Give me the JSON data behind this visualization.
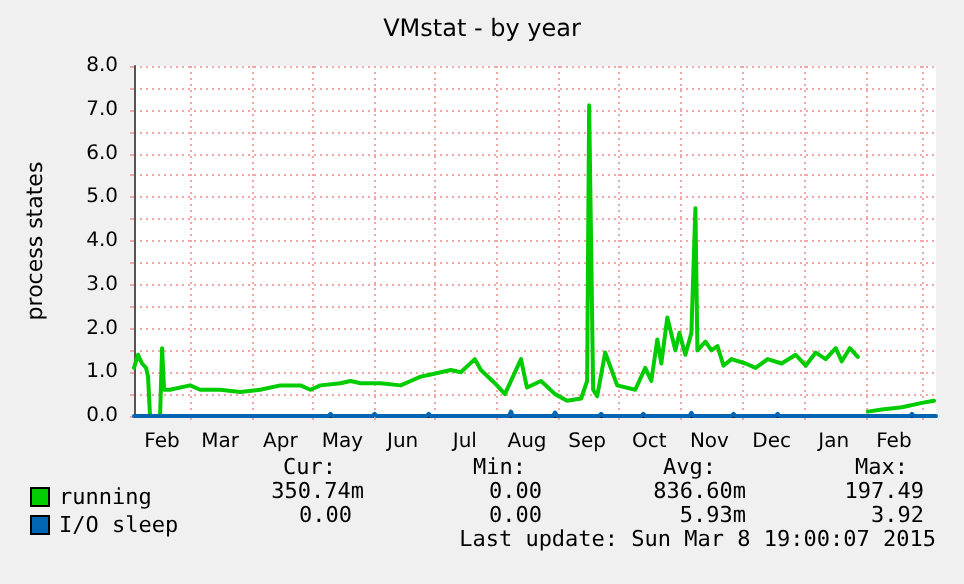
{
  "chart_data": {
    "type": "line",
    "title": "VMstat - by year",
    "ylabel": "process states",
    "xlim": [
      "2014-02-01",
      "2015-03-08"
    ],
    "xticks": [
      {
        "value": "2014-02-15",
        "label": "Feb"
      },
      {
        "value": "2014-03-16",
        "label": "Mar"
      },
      {
        "value": "2014-04-15",
        "label": "Apr"
      },
      {
        "value": "2014-05-16",
        "label": "May"
      },
      {
        "value": "2014-06-15",
        "label": "Jun"
      },
      {
        "value": "2014-07-16",
        "label": "Jul"
      },
      {
        "value": "2014-08-16",
        "label": "Aug"
      },
      {
        "value": "2014-09-15",
        "label": "Sep"
      },
      {
        "value": "2014-10-16",
        "label": "Oct"
      },
      {
        "value": "2014-11-15",
        "label": "Nov"
      },
      {
        "value": "2014-12-16",
        "label": "Dec"
      },
      {
        "value": "2015-01-16",
        "label": "Jan"
      },
      {
        "value": "2015-02-15",
        "label": "Feb"
      },
      {
        "value": "2014-03-01",
        "label": null
      },
      {
        "value": "2014-04-01",
        "label": null
      },
      {
        "value": "2014-05-01",
        "label": null
      },
      {
        "value": "2014-06-01",
        "label": null
      },
      {
        "value": "2014-07-01",
        "label": null
      },
      {
        "value": "2014-08-01",
        "label": null
      },
      {
        "value": "2014-09-01",
        "label": null
      },
      {
        "value": "2014-10-01",
        "label": null
      },
      {
        "value": "2014-11-01",
        "label": null
      },
      {
        "value": "2014-12-01",
        "label": null
      },
      {
        "value": "2015-01-01",
        "label": null
      },
      {
        "value": "2015-02-01",
        "label": null
      },
      {
        "value": "2015-03-01",
        "label": null
      }
    ],
    "ylim": [
      0,
      8
    ],
    "yticks": [
      {
        "value": 0,
        "label": "0.0"
      },
      {
        "value": 0.5,
        "label": null
      },
      {
        "value": 1,
        "label": "1.0"
      },
      {
        "value": 1.5,
        "label": null
      },
      {
        "value": 2,
        "label": "2.0"
      },
      {
        "value": 2.5,
        "label": null
      },
      {
        "value": 3,
        "label": "3.0"
      },
      {
        "value": 3.5,
        "label": null
      },
      {
        "value": 4,
        "label": "4.0"
      },
      {
        "value": 4.5,
        "label": null
      },
      {
        "value": 5,
        "label": "5.0"
      },
      {
        "value": 5.5,
        "label": null
      },
      {
        "value": 6,
        "label": "6.0"
      },
      {
        "value": 6.5,
        "label": null
      },
      {
        "value": 7,
        "label": "7.0"
      },
      {
        "value": 7.5,
        "label": null
      },
      {
        "value": 8,
        "label": "8.0"
      }
    ],
    "grid": true,
    "legend": "bottom left",
    "marker": "none",
    "line_style": "solid",
    "series": [
      {
        "name": "running",
        "color": "#00cc00",
        "x": [
          "2014-02-01",
          "2014-02-03",
          "2014-02-05",
          "2014-02-07",
          "2014-02-08",
          "2014-02-09",
          "2014-02-14",
          "2014-02-15",
          "2014-02-16",
          "2014-02-19",
          "2014-03-01",
          "2014-03-06",
          "2014-03-16",
          "2014-03-26",
          "2014-04-05",
          "2014-04-15",
          "2014-04-25",
          "2014-04-30",
          "2014-05-05",
          "2014-05-15",
          "2014-05-20",
          "2014-05-25",
          "2014-06-04",
          "2014-06-14",
          "2014-06-19",
          "2014-06-24",
          "2014-06-29",
          "2014-07-04",
          "2014-07-09",
          "2014-07-14",
          "2014-07-21",
          "2014-07-24",
          "2014-07-31",
          "2014-08-05",
          "2014-08-13",
          "2014-08-16",
          "2014-08-23",
          "2014-08-30",
          "2014-09-05",
          "2014-09-12",
          "2014-09-15",
          "2014-09-16",
          "2014-09-18",
          "2014-09-20",
          "2014-09-24",
          "2014-09-30",
          "2014-10-09",
          "2014-10-14",
          "2014-10-17",
          "2014-10-20",
          "2014-10-22",
          "2014-10-25",
          "2014-10-29",
          "2014-10-31",
          "2014-11-03",
          "2014-11-06",
          "2014-11-08",
          "2014-11-09",
          "2014-11-13",
          "2014-11-16",
          "2014-11-19",
          "2014-11-22",
          "2014-11-26",
          "2014-12-03",
          "2014-12-08",
          "2014-12-14",
          "2014-12-21",
          "2014-12-28",
          "2015-01-02",
          "2015-01-07",
          "2015-01-12",
          "2015-01-17",
          "2015-01-20",
          "2015-01-24",
          "2015-01-28",
          "2015-01-30",
          "2015-02-02",
          "2015-02-09",
          "2015-02-19",
          "2015-03-01",
          "2015-03-07"
        ],
        "values": [
          1.1,
          1.4,
          1.2,
          1.1,
          0.9,
          0,
          0,
          1.55,
          0.6,
          0.6,
          0.7,
          0.6,
          0.6,
          0.55,
          0.6,
          0.7,
          0.7,
          0.6,
          0.7,
          0.75,
          0.8,
          0.75,
          0.75,
          0.7,
          0.8,
          0.9,
          0.95,
          1.0,
          1.05,
          1.0,
          1.3,
          1.05,
          0.75,
          0.5,
          1.3,
          0.65,
          0.8,
          0.5,
          0.35,
          0.4,
          0.8,
          7.1,
          0.6,
          0.45,
          1.45,
          0.7,
          0.6,
          1.1,
          0.8,
          1.75,
          1.2,
          2.25,
          1.5,
          1.9,
          1.4,
          1.9,
          4.75,
          1.5,
          1.7,
          1.5,
          1.6,
          1.15,
          1.3,
          1.2,
          1.1,
          1.3,
          1.2,
          1.4,
          1.15,
          1.45,
          1.3,
          1.55,
          1.25,
          1.55,
          1.35,
          null,
          0.1,
          0.15,
          0.2,
          0.3,
          0.35
        ]
      },
      {
        "name": "I/O sleep",
        "color": "#0066b3",
        "x": [
          "2014-02-01",
          "2014-05-09",
          "2014-05-10",
          "2014-05-11",
          "2014-05-31",
          "2014-06-01",
          "2014-06-02",
          "2014-06-27",
          "2014-06-28",
          "2014-06-29",
          "2014-08-07",
          "2014-08-08",
          "2014-08-09",
          "2014-08-29",
          "2014-08-30",
          "2014-08-31",
          "2014-09-21",
          "2014-09-22",
          "2014-09-23",
          "2014-10-12",
          "2014-10-13",
          "2014-10-14",
          "2014-11-05",
          "2014-11-06",
          "2014-11-07",
          "2014-11-26",
          "2014-11-27",
          "2014-11-28",
          "2014-12-18",
          "2014-12-19",
          "2014-12-20",
          "2015-02-23",
          "2015-02-24",
          "2015-02-25",
          "2015-03-08"
        ],
        "values": [
          0,
          0,
          0.05,
          0,
          0,
          0.05,
          0,
          0,
          0.05,
          0,
          0,
          0.1,
          0,
          0,
          0.08,
          0,
          0,
          0.05,
          0,
          0,
          0.05,
          0,
          0,
          0.07,
          0,
          0,
          0.05,
          0,
          0,
          0.05,
          0,
          0,
          0.05,
          0,
          0
        ]
      }
    ],
    "annotations": [
      "Cur:",
      "Min:",
      "Avg:",
      "Max:",
      "350.74m",
      "0.00",
      "836.60m",
      "197.49",
      "0.00",
      "0.00",
      "5.93m",
      "3.92",
      "Last update: Sun Mar 8 19:00:07 2015"
    ]
  }
}
